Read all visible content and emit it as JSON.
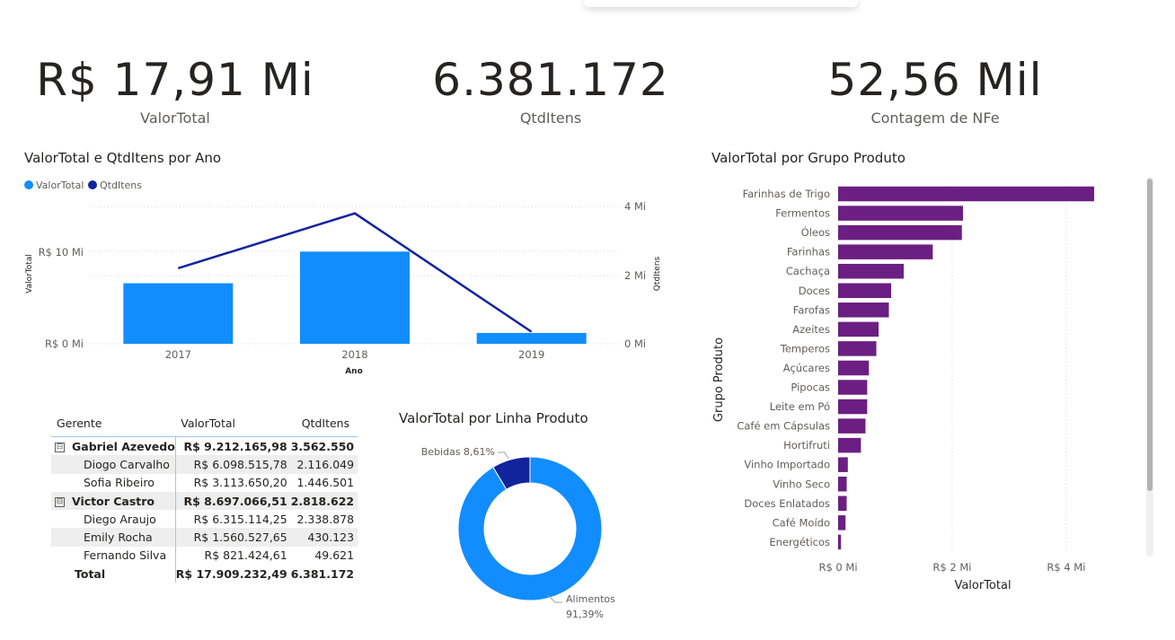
{
  "kpis": {
    "valor_total": {
      "value": "R$ 17,91 Mi",
      "label": "ValorTotal"
    },
    "qtd_itens": {
      "value": "6.381.172",
      "label": "QtdItens"
    },
    "contagem_nfe": {
      "value": "52,56 Mil",
      "label": "Contagem de NFe"
    }
  },
  "combo_chart": {
    "title": "ValorTotal e QtdItens por Ano",
    "legend": [
      {
        "name": "ValorTotal",
        "color": "#118DFF"
      },
      {
        "name": "QtdItens",
        "color": "#12239E"
      }
    ],
    "y_left_label": "ValorTotal",
    "y_right_label": "QtdItens",
    "x_label": "Ano",
    "y_left_ticks": [
      "R$ 10 Mi",
      "R$ 0 Mi"
    ],
    "y_right_ticks": [
      "4 Mi",
      "2 Mi",
      "0 Mi"
    ]
  },
  "chart_data": [
    {
      "type": "bar",
      "title": "ValorTotal e QtdItens por Ano",
      "categories": [
        "2017",
        "2018",
        "2019"
      ],
      "series": [
        {
          "name": "ValorTotal",
          "type": "bar",
          "axis": "left",
          "values": [
            6.7,
            10.2,
            1.2
          ]
        },
        {
          "name": "QtdItens",
          "type": "line",
          "axis": "right",
          "values": [
            2.2,
            3.8,
            0.35
          ]
        }
      ],
      "xlabel": "Ano",
      "ylabel": "ValorTotal",
      "y2label": "QtdItens",
      "ylim": [
        0,
        15.2
      ],
      "y2lim": [
        0,
        4.0
      ]
    },
    {
      "type": "bar",
      "orientation": "horizontal",
      "title": "ValorTotal por Grupo Produto",
      "categories": [
        "Farinhas de Trigo",
        "Fermentos",
        "Óleos",
        "Farinhas",
        "Cachaça",
        "Doces",
        "Farofas",
        "Azeites",
        "Temperos",
        "Açúcares",
        "Pipocas",
        "Leite em Pó",
        "Café em Cápsulas",
        "Hortifruti",
        "Vinho Importado",
        "Vinho Seco",
        "Doces Enlatados",
        "Café Moído",
        "Energéticos"
      ],
      "values": [
        4.49,
        2.19,
        2.17,
        1.66,
        1.15,
        0.93,
        0.89,
        0.71,
        0.67,
        0.54,
        0.51,
        0.51,
        0.48,
        0.4,
        0.17,
        0.15,
        0.15,
        0.13,
        0.05
      ],
      "xlabel": "ValorTotal",
      "ylabel": "Grupo Produto",
      "xlim": [
        0,
        4.6
      ],
      "x_ticks": [
        "R$ 0 Mi",
        "R$ 2 Mi",
        "R$ 4 Mi"
      ]
    },
    {
      "type": "pie",
      "title": "ValorTotal por Linha Produto",
      "categories": [
        "Bebidas",
        "Alimentos"
      ],
      "values": [
        8.61,
        91.39
      ],
      "labels": [
        "Bebidas 8,61%",
        "Alimentos",
        "91,39%"
      ]
    }
  ],
  "bar_chart": {
    "title": "ValorTotal por Grupo Produto",
    "xlabel": "ValorTotal",
    "ylabel": "Grupo Produto",
    "color": "#6B1F82"
  },
  "donut": {
    "title": "ValorTotal por Linha Produto",
    "bebidas_label": "Bebidas 8,61%",
    "alimentos_label": "Alimentos",
    "alimentos_pct": "91,39%",
    "colors": {
      "Alimentos": "#118DFF",
      "Bebidas": "#12239E"
    }
  },
  "matrix": {
    "headers": [
      "Gerente",
      "ValorTotal",
      "QtdItens"
    ],
    "rows": [
      {
        "name": "Gabriel Azevedo",
        "valor": "R$ 9.212.165,98",
        "qtd": "3.562.550",
        "level": "group"
      },
      {
        "name": "Diogo Carvalho",
        "valor": "R$ 6.098.515,78",
        "qtd": "2.116.049",
        "level": "child"
      },
      {
        "name": "Sofia Ribeiro",
        "valor": "R$ 3.113.650,20",
        "qtd": "1.446.501",
        "level": "child"
      },
      {
        "name": "Victor Castro",
        "valor": "R$ 8.697.066,51",
        "qtd": "2.818.622",
        "level": "group"
      },
      {
        "name": "Diego Araujo",
        "valor": "R$ 6.315.114,25",
        "qtd": "2.338.878",
        "level": "child"
      },
      {
        "name": "Emily Rocha",
        "valor": "R$ 1.560.527,65",
        "qtd": "430.123",
        "level": "child"
      },
      {
        "name": "Fernando Silva",
        "valor": "R$ 821.424,61",
        "qtd": "49.621",
        "level": "child"
      }
    ],
    "total": {
      "name": "Total",
      "valor": "R$ 17.909.232,49",
      "qtd": "6.381.172"
    },
    "expander_symbol": "⊟"
  }
}
